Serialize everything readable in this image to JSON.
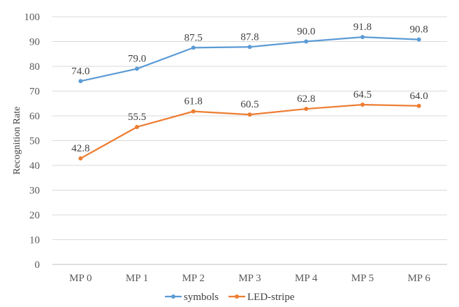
{
  "chart_data": {
    "type": "line",
    "title": "",
    "xlabel": "",
    "ylabel": "Recognition Rate",
    "ylim": [
      0,
      100
    ],
    "yticks": [
      0,
      10,
      20,
      30,
      40,
      50,
      60,
      70,
      80,
      90,
      100
    ],
    "categories": [
      "MP 0",
      "MP 1",
      "MP 2",
      "MP 3",
      "MP 4",
      "MP 5",
      "MP 6"
    ],
    "series": [
      {
        "name": "symbols",
        "color": "#5B9BD5",
        "values": [
          74.0,
          79.0,
          87.5,
          87.8,
          90.0,
          91.8,
          90.8
        ],
        "labels": [
          "74.0",
          "79.0",
          "87.5",
          "87.8",
          "90.0",
          "91.8",
          "90.8"
        ]
      },
      {
        "name": "LED-stripe",
        "color": "#ED7D31",
        "values": [
          42.8,
          55.5,
          61.8,
          60.5,
          62.8,
          64.5,
          64.0
        ],
        "labels": [
          "42.8",
          "55.5",
          "61.8",
          "60.5",
          "62.8",
          "64.5",
          "64.0"
        ]
      }
    ],
    "grid": true,
    "legend": "bottom-center"
  }
}
